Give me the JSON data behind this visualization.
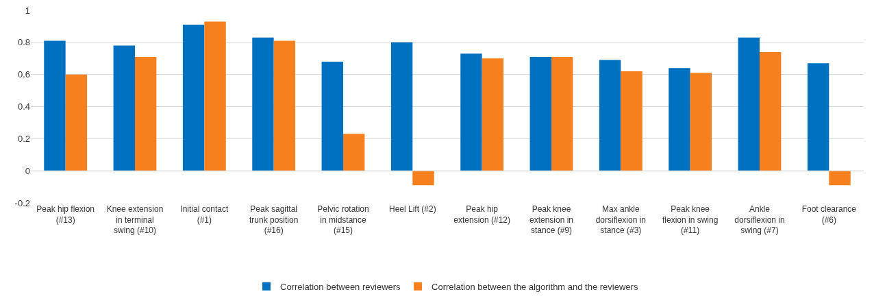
{
  "chart_data": {
    "type": "bar",
    "categories": [
      "Peak hip flexion (#13)",
      "Knee extension in terminal swing (#10)",
      "Initial contact (#1)",
      "Peak sagittal trunk position (#16)",
      "Pelvic rotation in midstance (#15)",
      "Heel Lift (#2)",
      "Peak hip extension (#12)",
      "Peak knee extension in stance (#9)",
      "Max ankle dorsiflexion in stance (#3)",
      "Peak knee flexion in swing (#11)",
      "Ankle dorsiflexion in swing (#7)",
      "Foot clearance (#6)"
    ],
    "series": [
      {
        "name": "Correlation between reviewers",
        "color": "#0070c0",
        "values": [
          0.81,
          0.78,
          0.91,
          0.83,
          0.68,
          0.8,
          0.73,
          0.71,
          0.69,
          0.64,
          0.83,
          0.67
        ]
      },
      {
        "name": "Correlation between the algorithm and the reviewers",
        "color": "#f7801e",
        "values": [
          0.6,
          0.71,
          0.93,
          0.81,
          0.23,
          -0.09,
          0.7,
          0.71,
          0.62,
          0.61,
          0.74,
          -0.09
        ]
      }
    ],
    "ylim": [
      -0.2,
      1
    ],
    "yticks": [
      -0.2,
      0,
      0.2,
      0.4,
      0.6,
      0.8,
      1
    ],
    "grid": "y",
    "legend": "bottom"
  }
}
